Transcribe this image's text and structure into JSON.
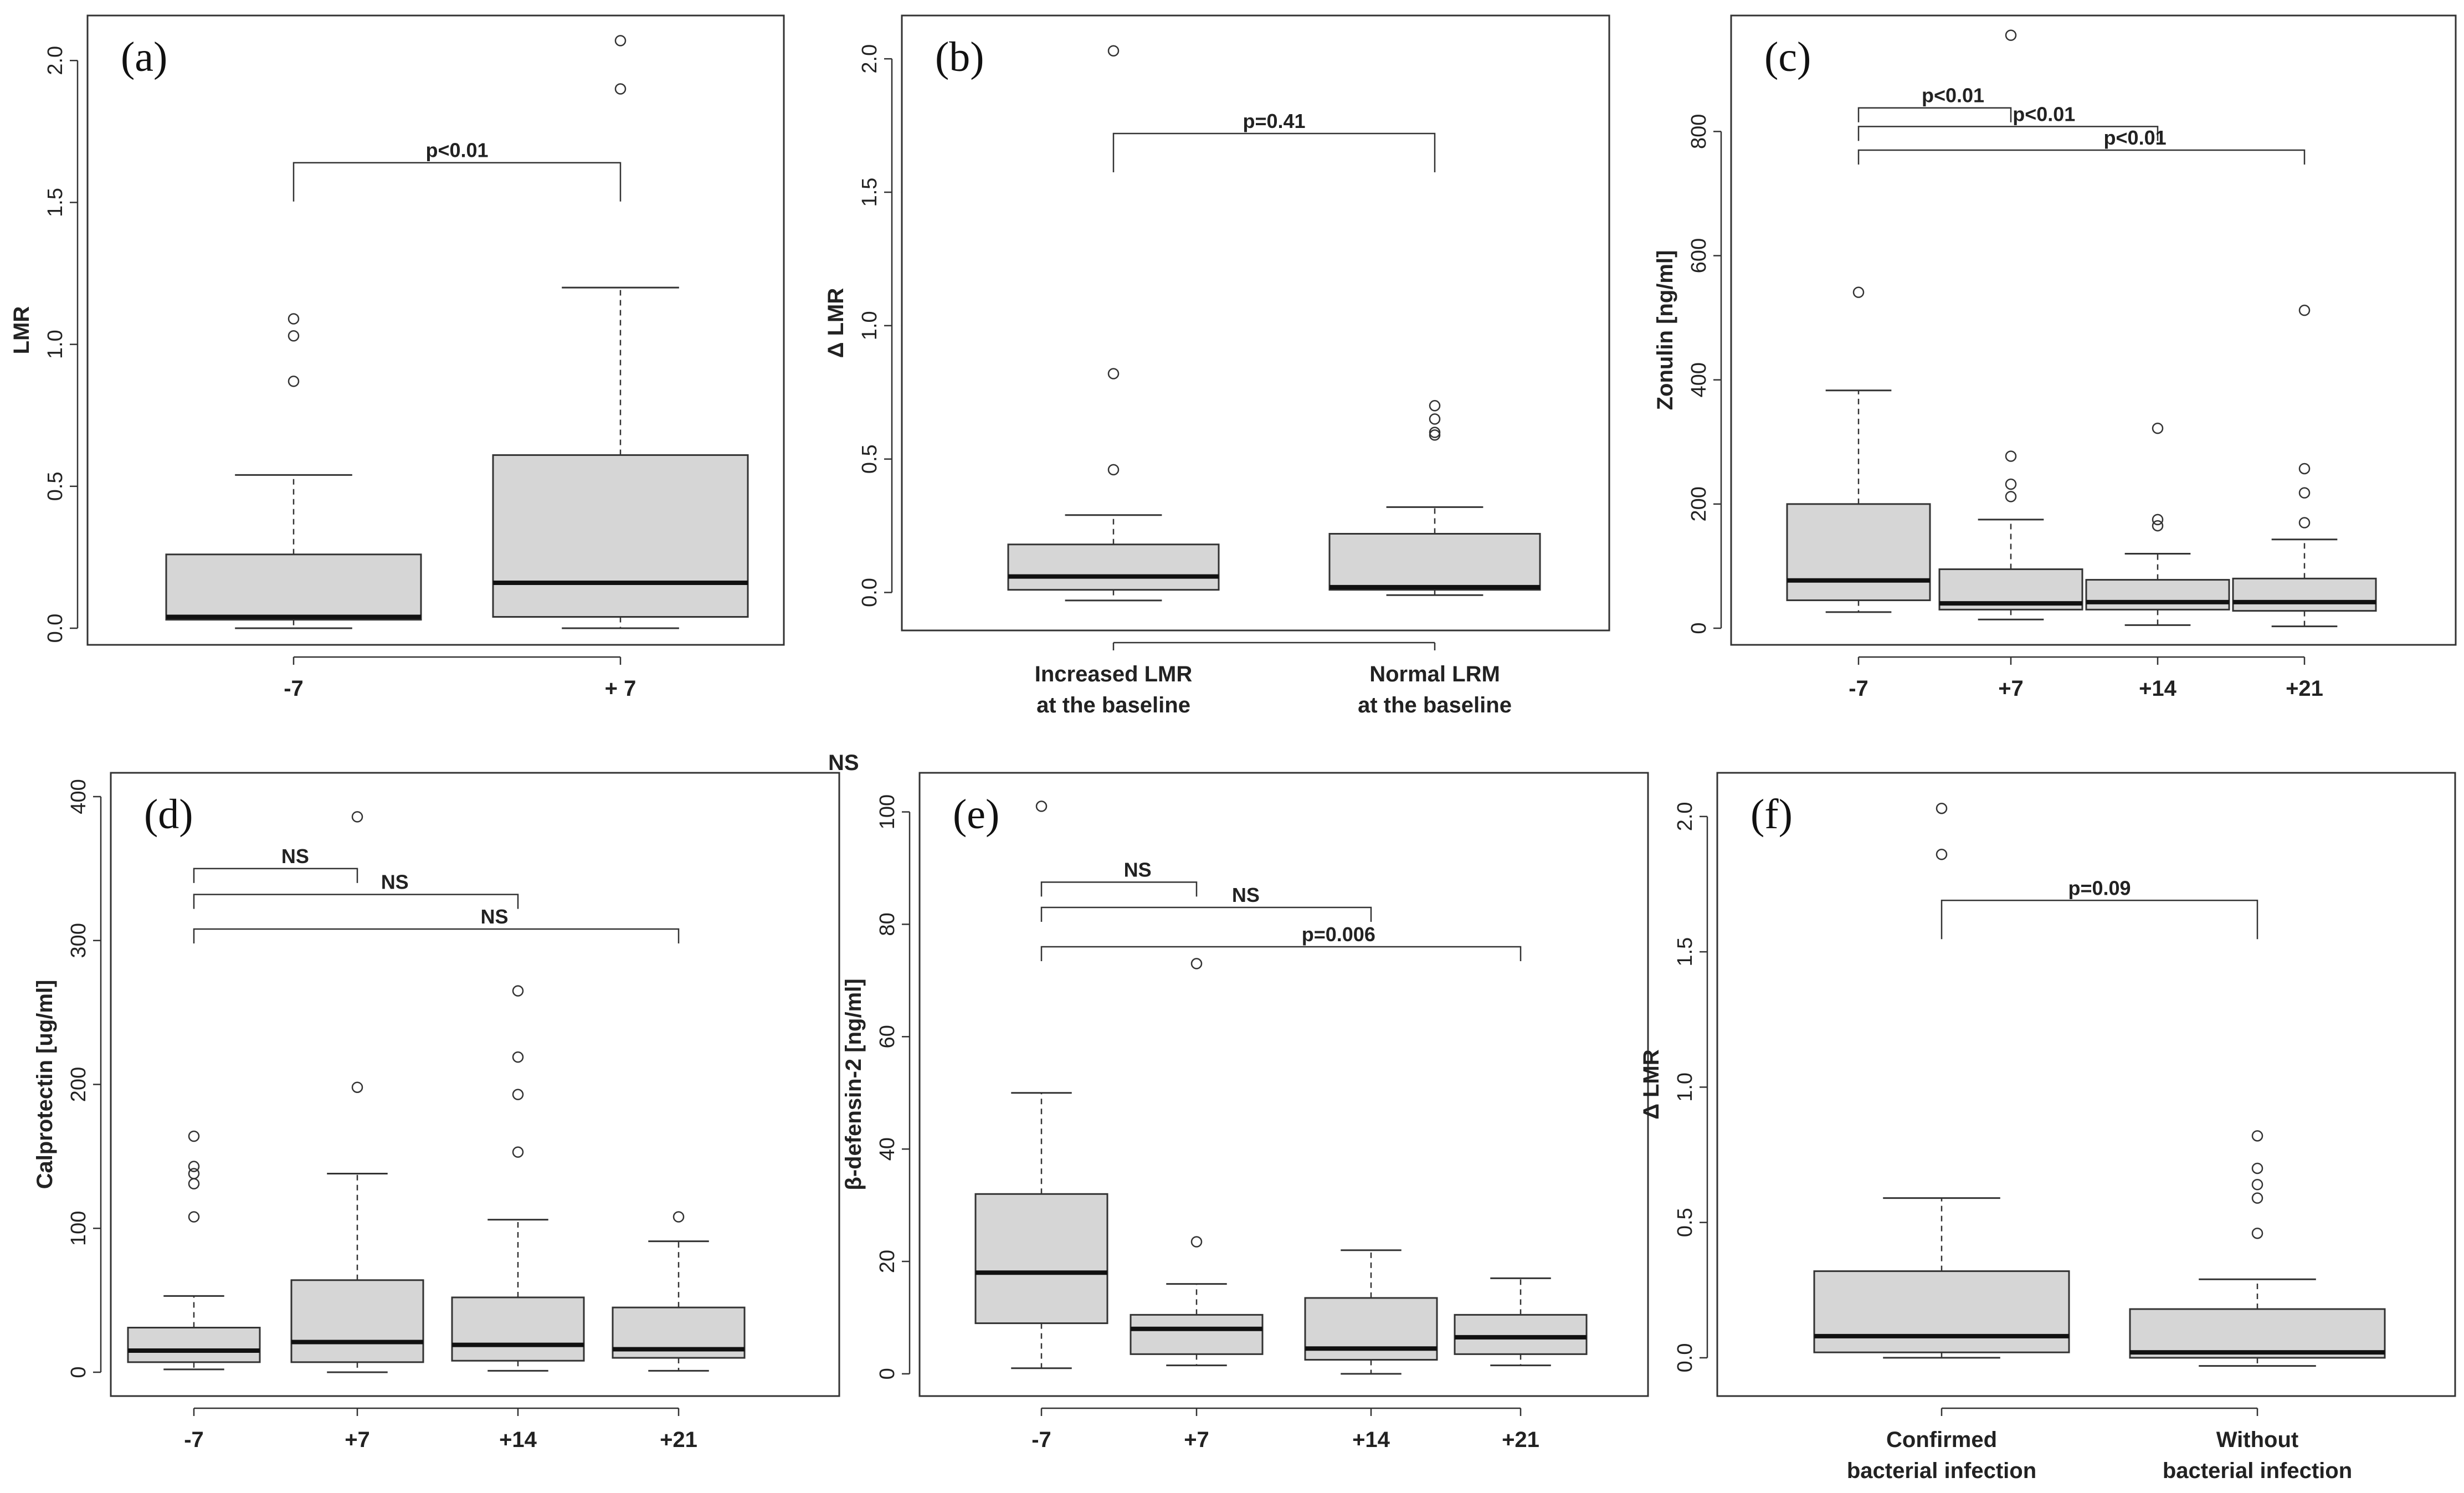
{
  "figure_note": "NS",
  "chart_data": [
    {
      "type": "boxplot",
      "panel": "(a)",
      "ylabel": "LMR",
      "ylim": [
        0,
        2.1
      ],
      "yticks": [
        0.0,
        0.5,
        1.0,
        1.5,
        2.0
      ],
      "ytick_labels": [
        "0.0",
        "0.5",
        "1.0",
        "1.5",
        "2.0"
      ],
      "categories": [
        [
          "-7"
        ],
        [
          "+ 7"
        ]
      ],
      "boxes": [
        {
          "min": 0.0,
          "q1": 0.03,
          "median": 0.04,
          "q3": 0.26,
          "max": 0.54,
          "outliers": [
            0.87,
            1.03,
            1.09
          ]
        },
        {
          "min": 0.0,
          "q1": 0.04,
          "median": 0.16,
          "q3": 0.61,
          "max": 1.2,
          "outliers": [
            1.9,
            2.07
          ]
        }
      ],
      "brackets": [
        {
          "from": 0,
          "to": 1,
          "y": 1.64,
          "label": "p<0.01"
        }
      ]
    },
    {
      "type": "boxplot",
      "panel": "(b)",
      "ylabel": "Δ LMR",
      "ylim": [
        -0.08,
        2.1
      ],
      "yticks": [
        0.0,
        0.5,
        1.0,
        1.5,
        2.0
      ],
      "ytick_labels": [
        "0.0",
        "0.5",
        "1.0",
        "1.5",
        "2.0"
      ],
      "categories": [
        [
          "Increased LMR",
          "at the baseline"
        ],
        [
          "Normal LRM",
          "at the baseline"
        ]
      ],
      "boxes": [
        {
          "min": -0.03,
          "q1": 0.01,
          "median": 0.06,
          "q3": 0.18,
          "max": 0.29,
          "outliers": [
            0.46,
            0.82,
            2.03
          ]
        },
        {
          "min": -0.01,
          "q1": 0.01,
          "median": 0.02,
          "q3": 0.22,
          "max": 0.32,
          "outliers": [
            0.59,
            0.6,
            0.65,
            0.7
          ]
        }
      ],
      "brackets": [
        {
          "from": 0,
          "to": 1,
          "y": 1.72,
          "label": "p=0.41"
        }
      ]
    },
    {
      "type": "boxplot",
      "panel": "(c)",
      "ylabel": "Zonulin [ng/ml]",
      "ylim": [
        0,
        960
      ],
      "yticks": [
        0,
        200,
        400,
        600,
        800
      ],
      "ytick_labels": [
        "0",
        "200",
        "400",
        "600",
        "800"
      ],
      "categories": [
        [
          "-7"
        ],
        [
          "+7"
        ],
        [
          "+14"
        ],
        [
          "+21"
        ]
      ],
      "boxes": [
        {
          "min": 26,
          "q1": 45,
          "median": 77,
          "q3": 200,
          "max": 383,
          "outliers": [
            541
          ]
        },
        {
          "min": 14,
          "q1": 30,
          "median": 40,
          "q3": 95,
          "max": 175,
          "outliers": [
            212,
            232,
            277,
            955
          ]
        },
        {
          "min": 5,
          "q1": 30,
          "median": 42,
          "q3": 78,
          "max": 120,
          "outliers": [
            165,
            175,
            322
          ]
        },
        {
          "min": 3,
          "q1": 28,
          "median": 42,
          "q3": 80,
          "max": 143,
          "outliers": [
            170,
            218,
            257,
            512
          ]
        }
      ],
      "brackets": [
        {
          "from": 0,
          "to": 1,
          "y": 838,
          "label": "p<0.01"
        },
        {
          "from": 0,
          "to": 2,
          "y": 808,
          "label": "p<0.01"
        },
        {
          "from": 0,
          "to": 3,
          "y": 770,
          "label": "p<0.01"
        }
      ]
    },
    {
      "type": "boxplot",
      "panel": "(d)",
      "ylabel": "Calprotectin [ug/ml]",
      "ylim": [
        -5,
        405
      ],
      "yticks": [
        0,
        100,
        200,
        300,
        400
      ],
      "ytick_labels": [
        "0",
        "100",
        "200",
        "300",
        "400"
      ],
      "categories": [
        [
          "-7"
        ],
        [
          "+7"
        ],
        [
          "+14"
        ],
        [
          "+21"
        ]
      ],
      "boxes": [
        {
          "min": 2,
          "q1": 7,
          "median": 15,
          "q3": 31,
          "max": 53,
          "outliers": [
            108,
            131,
            138,
            143,
            164
          ]
        },
        {
          "min": 0,
          "q1": 7,
          "median": 21,
          "q3": 64,
          "max": 138,
          "outliers": [
            198,
            386
          ]
        },
        {
          "min": 1,
          "q1": 8,
          "median": 19,
          "q3": 52,
          "max": 106,
          "outliers": [
            153,
            193,
            219,
            265
          ]
        },
        {
          "min": 1,
          "q1": 10,
          "median": 16,
          "q3": 45,
          "max": 91,
          "outliers": [
            108
          ]
        }
      ],
      "brackets": [
        {
          "from": 0,
          "to": 1,
          "y": 350,
          "label": "NS"
        },
        {
          "from": 0,
          "to": 2,
          "y": 332,
          "label": "NS"
        },
        {
          "from": 0,
          "to": 3,
          "y": 308,
          "label": "NS"
        }
      ]
    },
    {
      "type": "boxplot",
      "panel": "(e)",
      "ylabel": "β-defensin-2 [ng/ml]",
      "ylim": [
        -1,
        104
      ],
      "yticks": [
        0,
        20,
        40,
        60,
        80,
        100
      ],
      "ytick_labels": [
        "0",
        "20",
        "40",
        "60",
        "80",
        "100"
      ],
      "categories": [
        [
          "-7"
        ],
        [
          "+7"
        ],
        [
          "+14"
        ],
        [
          "+21"
        ]
      ],
      "boxes": [
        {
          "min": 1,
          "q1": 9,
          "median": 18,
          "q3": 32,
          "max": 50,
          "outliers": [
            101
          ]
        },
        {
          "min": 1.5,
          "q1": 3.5,
          "median": 8,
          "q3": 10.5,
          "max": 16,
          "outliers": [
            23.5,
            73
          ]
        },
        {
          "min": 0,
          "q1": 2.5,
          "median": 4.5,
          "q3": 13.5,
          "max": 22,
          "outliers": []
        },
        {
          "min": 1.5,
          "q1": 3.5,
          "median": 6.5,
          "q3": 10.5,
          "max": 17,
          "outliers": []
        }
      ],
      "brackets": [
        {
          "from": 0,
          "to": 1,
          "y": 87.5,
          "label": "NS"
        },
        {
          "from": 0,
          "to": 2,
          "y": 83,
          "label": "NS"
        },
        {
          "from": 0,
          "to": 3,
          "y": 76,
          "label": "p=0.006"
        }
      ]
    },
    {
      "type": "boxplot",
      "panel": "(f)",
      "ylabel": "Δ LMR",
      "ylim": [
        -0.08,
        2.1
      ],
      "yticks": [
        0.0,
        0.5,
        1.0,
        1.5,
        2.0
      ],
      "ytick_labels": [
        "0.0",
        "0.5",
        "1.0",
        "1.5",
        "2.0"
      ],
      "categories": [
        [
          "Confirmed",
          "bacterial infection"
        ],
        [
          "Without",
          "bacterial infection"
        ]
      ],
      "boxes": [
        {
          "min": 0.0,
          "q1": 0.02,
          "median": 0.08,
          "q3": 0.32,
          "max": 0.59,
          "outliers": [
            1.86,
            2.03
          ]
        },
        {
          "min": -0.03,
          "q1": 0.0,
          "median": 0.02,
          "q3": 0.18,
          "max": 0.29,
          "outliers": [
            0.46,
            0.59,
            0.64,
            0.7,
            0.82
          ]
        }
      ],
      "brackets": [
        {
          "from": 0,
          "to": 1,
          "y": 1.69,
          "label": "p=0.09"
        }
      ]
    }
  ]
}
